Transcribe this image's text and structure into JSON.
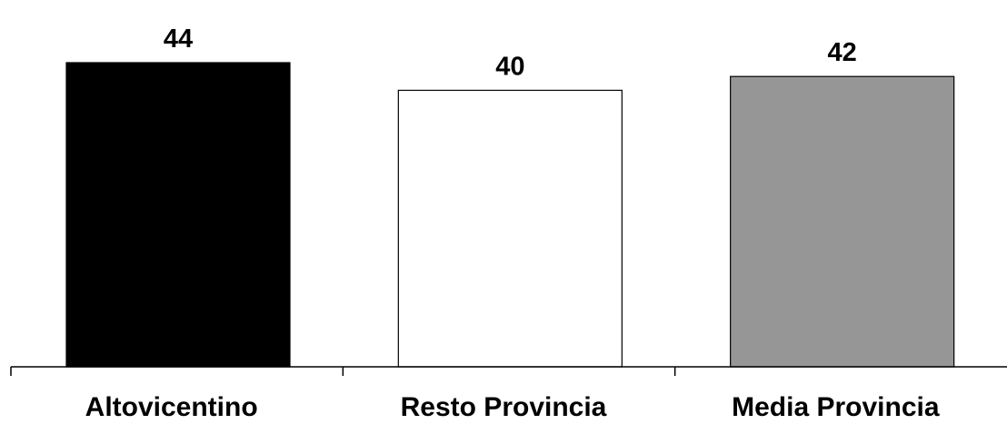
{
  "chart_data": {
    "type": "bar",
    "categories": [
      "Altovicentino",
      "Resto Provincia",
      "Media Provincia"
    ],
    "values": [
      44,
      40,
      42
    ],
    "data_labels": [
      "44",
      "40",
      "42"
    ],
    "bar_colors": [
      "#000000",
      "#ffffff",
      "#969696"
    ],
    "bar_stroke": "#000000",
    "title": "",
    "xlabel": "",
    "ylabel": "",
    "ylim": [
      0,
      44
    ],
    "grid": false,
    "legend": "none",
    "y_axis_visible": false
  }
}
